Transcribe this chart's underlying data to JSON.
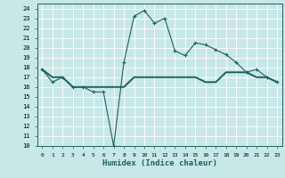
{
  "xlabel": "Humidex (Indice chaleur)",
  "xlim": [
    -0.5,
    23.5
  ],
  "ylim": [
    10,
    24.5
  ],
  "yticks": [
    10,
    11,
    12,
    13,
    14,
    15,
    16,
    17,
    18,
    19,
    20,
    21,
    22,
    23,
    24
  ],
  "xticks": [
    0,
    1,
    2,
    3,
    4,
    5,
    6,
    7,
    8,
    9,
    10,
    11,
    12,
    13,
    14,
    15,
    16,
    17,
    18,
    19,
    20,
    21,
    22,
    23
  ],
  "bg_color": "#c8e8e8",
  "line_color": "#1a6060",
  "grid_color": "#ffffff",
  "line1_x": [
    0,
    1,
    2,
    3,
    4,
    5,
    6,
    7,
    8,
    9,
    10,
    11,
    12,
    13,
    14,
    15,
    16,
    17,
    18,
    19,
    20,
    21,
    22,
    23
  ],
  "line1_y": [
    17.8,
    16.5,
    17.0,
    16.0,
    16.0,
    15.5,
    15.5,
    10.0,
    18.5,
    23.2,
    23.8,
    22.5,
    23.0,
    19.7,
    19.2,
    20.5,
    20.3,
    19.8,
    19.3,
    18.5,
    17.5,
    17.8,
    17.0,
    16.5
  ],
  "line2_x": [
    0,
    1,
    2,
    3,
    4,
    5,
    6,
    7,
    8,
    9,
    10,
    11,
    12,
    13,
    14,
    15,
    16,
    17,
    18,
    19,
    20,
    21,
    22,
    23
  ],
  "line2_y": [
    17.8,
    17.0,
    17.0,
    16.0,
    16.0,
    16.0,
    16.0,
    16.0,
    16.0,
    17.0,
    17.0,
    17.0,
    17.0,
    17.0,
    17.0,
    17.0,
    16.5,
    16.5,
    17.5,
    17.5,
    17.5,
    17.0,
    17.0,
    16.5
  ],
  "marker": "+",
  "markersize": 3.5,
  "linewidth": 0.8,
  "line2_linewidth": 1.4
}
